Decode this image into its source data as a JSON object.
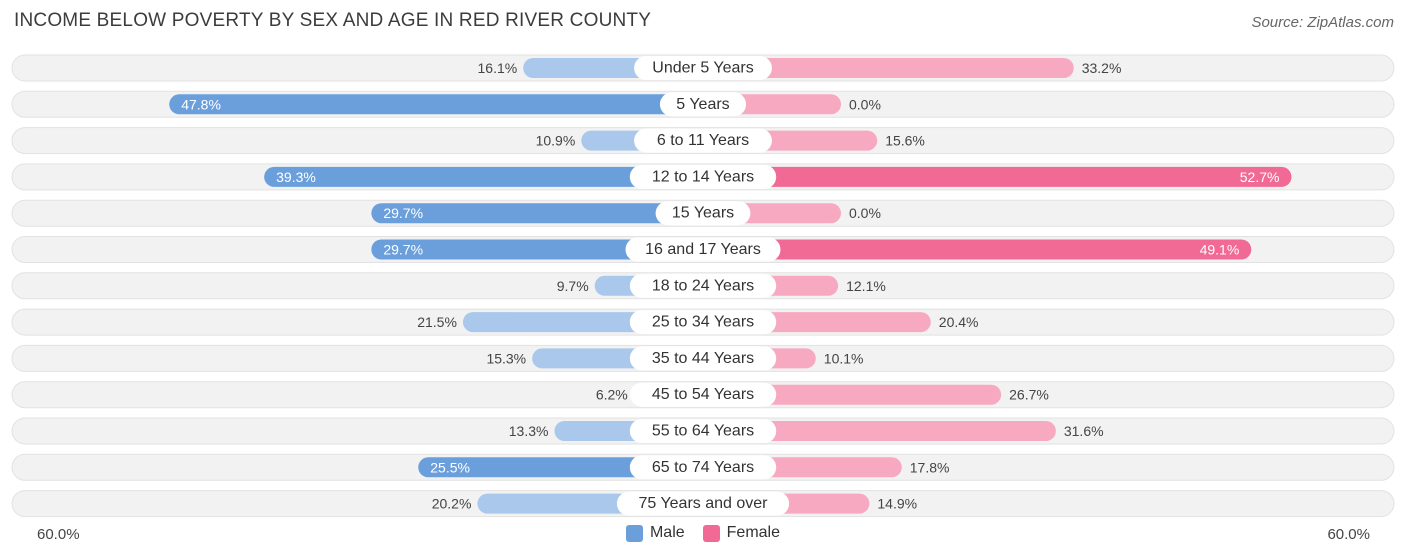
{
  "chart_data": {
    "type": "bar",
    "orientation": "horizontal-diverging",
    "title": "INCOME BELOW POVERTY BY SEX AND AGE IN RED RIVER COUNTY",
    "source": "Source: ZipAtlas.com",
    "categories": [
      "Under 5 Years",
      "5 Years",
      "6 to 11 Years",
      "12 to 14 Years",
      "15 Years",
      "16 and 17 Years",
      "18 to 24 Years",
      "25 to 34 Years",
      "35 to 44 Years",
      "45 to 54 Years",
      "55 to 64 Years",
      "65 to 74 Years",
      "75 Years and over"
    ],
    "series": [
      {
        "name": "Male",
        "color": "#6a9fdc",
        "light_color": "#a9c8ec",
        "values": [
          16.1,
          47.8,
          10.9,
          39.3,
          29.7,
          29.7,
          9.7,
          21.5,
          15.3,
          6.2,
          13.3,
          25.5,
          20.2
        ],
        "labels": [
          "16.1%",
          "47.8%",
          "10.9%",
          "39.3%",
          "29.7%",
          "29.7%",
          "9.7%",
          "21.5%",
          "15.3%",
          "6.2%",
          "13.3%",
          "25.5%",
          "20.2%"
        ]
      },
      {
        "name": "Female",
        "color": "#f06a95",
        "light_color": "#f7a9c2",
        "values": [
          33.2,
          0.0,
          15.6,
          52.7,
          0.0,
          49.1,
          12.1,
          20.4,
          10.1,
          26.7,
          31.6,
          17.8,
          14.9
        ],
        "labels": [
          "33.2%",
          "0.0%",
          "15.6%",
          "52.7%",
          "0.0%",
          "49.1%",
          "12.1%",
          "20.4%",
          "10.1%",
          "26.7%",
          "31.6%",
          "17.8%",
          "14.9%"
        ]
      }
    ],
    "xlim": [
      -60,
      60
    ],
    "axis_min_label": "60.0%",
    "axis_max_label": "60.0%",
    "legend": [
      "Male",
      "Female"
    ]
  }
}
